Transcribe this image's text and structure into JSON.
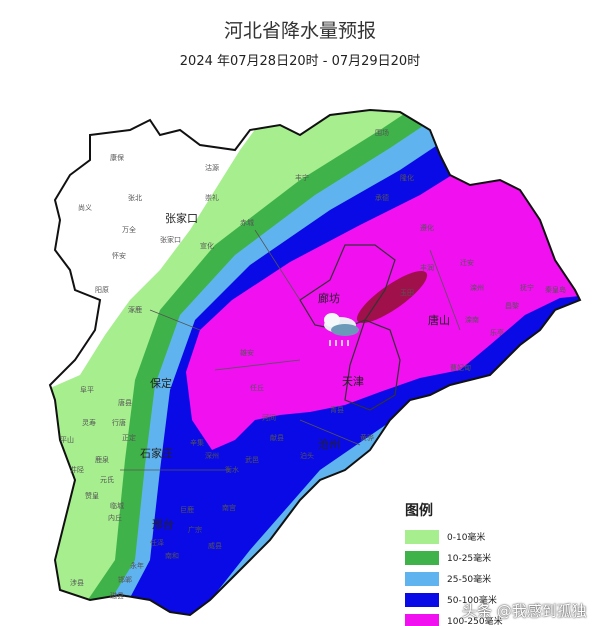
{
  "title": "河北省降水量预报",
  "subtitle": "2024 年07月28日20时 - 07月29日20时",
  "colors": {
    "none": "#ffffff",
    "c0_10": "#a6ee8e",
    "c10_25": "#3fb34a",
    "c25_50": "#5fb4f0",
    "c50_100": "#0a0ae6",
    "c100_250": "#f010f0",
    "c250": "#a0104a"
  },
  "legend": {
    "title": "图例",
    "items": [
      {
        "label": "0-10毫米",
        "color": "#a6ee8e"
      },
      {
        "label": "10-25毫米",
        "color": "#3fb34a"
      },
      {
        "label": "25-50毫米",
        "color": "#5fb4f0"
      },
      {
        "label": "50-100毫米",
        "color": "#0a0ae6"
      },
      {
        "label": "100-250毫米",
        "color": "#f010f0"
      }
    ]
  },
  "cities_major": [
    "张家口",
    "保定",
    "石家庄",
    "廊坊",
    "天津",
    "唐山",
    "沧州",
    "邢台"
  ],
  "cities_minor": [
    "康保",
    "沽源",
    "尚义",
    "张北",
    "万全",
    "崇礼",
    "张家口",
    "怀安",
    "宣化",
    "赤城",
    "丰宁",
    "围场",
    "承德",
    "隆化",
    "阳原",
    "涿鹿",
    "阜平",
    "唐县",
    "灵寿",
    "行唐",
    "平山",
    "正定",
    "鹿泉",
    "井陉",
    "元氏",
    "赞皇",
    "临城",
    "内丘",
    "雄安",
    "任丘",
    "河间",
    "献县",
    "泊头",
    "衡水",
    "深州",
    "武邑",
    "辛集",
    "南宫",
    "巨鹿",
    "广宗",
    "威县",
    "任泽",
    "南和",
    "永年",
    "邯郸",
    "磁县",
    "涉县",
    "遵化",
    "迁安",
    "丰润",
    "玉田",
    "滦州",
    "乐亭",
    "昌黎",
    "抚宁",
    "秦皇岛",
    "滦南",
    "曹妃甸",
    "青县",
    "黄骅"
  ],
  "weather_icon": "rain-cloud-icon",
  "watermark": "头条 @我感到孤独"
}
